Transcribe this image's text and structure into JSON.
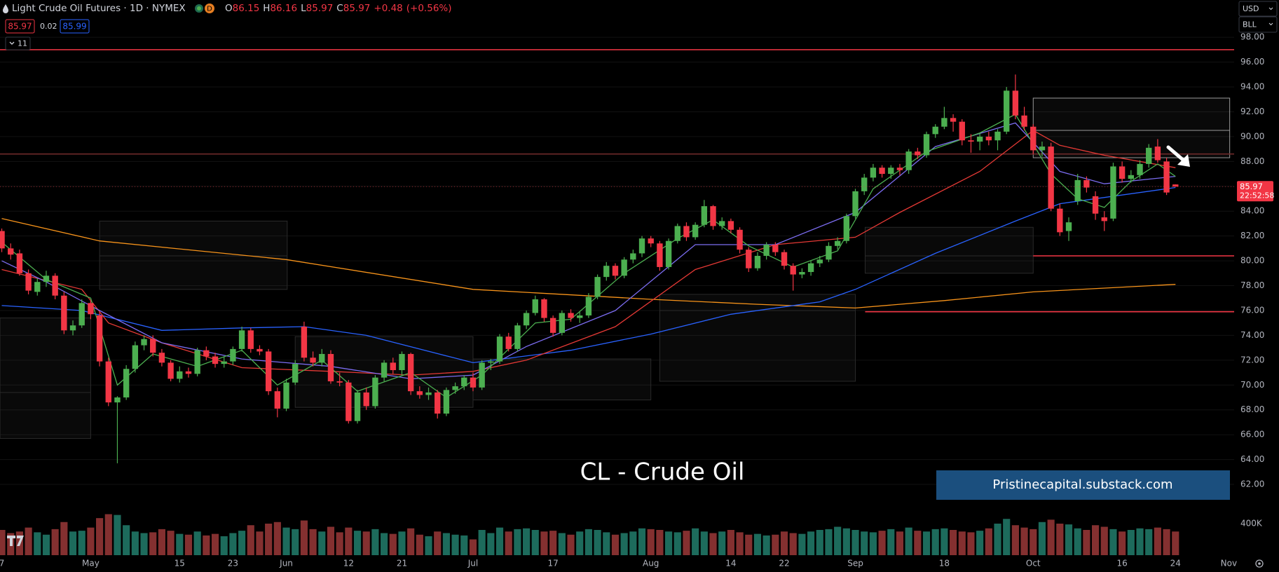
{
  "header": {
    "title": "Light Crude Oil Futures · 1D · NYMEX",
    "interval_badge": "D",
    "o_label": "O",
    "open": 86.15,
    "h_label": "H",
    "high": 86.16,
    "l_label": "L",
    "low": 85.97,
    "c_label": "C",
    "close": 85.97,
    "change": "+0.48",
    "change_pct": "(+0.56%)",
    "bid": 85.97,
    "spread": 0.02,
    "ask": 85.99,
    "indicators_count": 11,
    "currency": "USD",
    "unit": "BLL"
  },
  "chart_data": {
    "type": "candlestick",
    "up_color": "#4caf50",
    "down_color": "#f23645",
    "volume_up_color": "#1d6b5c",
    "volume_down_color": "#843030",
    "annotation": "CL - Crude Oil",
    "banner": "Pristinecapital.substack.com",
    "last_price": 85.97,
    "countdown": "22:52:58",
    "xlim": [
      -0.2,
      138.6
    ],
    "ylim": [
      56.3,
      101.0
    ],
    "vlim": [
      0,
      7040000
    ],
    "yticks": [
      {
        "value": 62,
        "label": "62.00"
      },
      {
        "value": 64,
        "label": "64.00"
      },
      {
        "value": 66,
        "label": "66.00"
      },
      {
        "value": 68,
        "label": "68.00"
      },
      {
        "value": 70,
        "label": "70.00"
      },
      {
        "value": 72,
        "label": "72.00"
      },
      {
        "value": 74,
        "label": "74.00"
      },
      {
        "value": 76,
        "label": "76.00"
      },
      {
        "value": 78,
        "label": "78.00"
      },
      {
        "value": 80,
        "label": "80.00"
      },
      {
        "value": 82,
        "label": "82.00"
      },
      {
        "value": 84,
        "label": "84.00"
      },
      {
        "value": 86,
        "label": "86.00"
      },
      {
        "value": 88,
        "label": "88.00"
      },
      {
        "value": 90,
        "label": "90.00"
      },
      {
        "value": 92,
        "label": "92.00"
      },
      {
        "value": 94,
        "label": "94.00"
      },
      {
        "value": 96,
        "label": "96.00"
      },
      {
        "value": 98,
        "label": "98.00"
      }
    ],
    "vticks": [
      {
        "value": 400000,
        "label": "400K"
      }
    ],
    "xticks": [
      {
        "value": 0,
        "label": "7"
      },
      {
        "value": 10,
        "label": "May"
      },
      {
        "value": 20,
        "label": "15"
      },
      {
        "value": 26,
        "label": "23"
      },
      {
        "value": 32,
        "label": "Jun"
      },
      {
        "value": 39,
        "label": "12"
      },
      {
        "value": 45,
        "label": "21"
      },
      {
        "value": 53,
        "label": "Jul"
      },
      {
        "value": 62,
        "label": "17"
      },
      {
        "value": 73,
        "label": "Aug"
      },
      {
        "value": 82,
        "label": "14"
      },
      {
        "value": 88,
        "label": "22"
      },
      {
        "value": 96,
        "label": "Sep"
      },
      {
        "value": 106,
        "label": "18"
      },
      {
        "value": 116,
        "label": "Oct"
      },
      {
        "value": 126,
        "label": "16"
      },
      {
        "value": 132,
        "label": "24"
      },
      {
        "value": 138,
        "label": "Nov"
      }
    ],
    "levels": [
      {
        "value": 97.0,
        "color": "#f23645"
      },
      {
        "value": 88.6,
        "color": "#6e2a2a"
      },
      {
        "value": 80.4,
        "color": "#f23645",
        "from": 116
      },
      {
        "value": 75.9,
        "color": "#f23645",
        "from": 97.1
      }
    ],
    "zones": [
      {
        "x": [
          -0.2,
          10.0
        ],
        "y": [
          65.7,
          75.4
        ],
        "mid": 69.4,
        "color": "#2a2a2a"
      },
      {
        "x": [
          11.0,
          32.1
        ],
        "y": [
          77.7,
          83.2
        ],
        "mid": 80.4,
        "color": "#2a2a2a"
      },
      {
        "x": [
          33.0,
          53.0
        ],
        "y": [
          68.2,
          73.9
        ],
        "color": "#2a2a2a"
      },
      {
        "x": [
          53.0,
          73.0
        ],
        "y": [
          68.8,
          72.1
        ],
        "color": "#2a2a2a"
      },
      {
        "x": [
          74.0,
          96.0
        ],
        "y": [
          70.3,
          77.3
        ],
        "mid": 76.0,
        "color": "#2a2a2a"
      },
      {
        "x": [
          97.1,
          116.0
        ],
        "y": [
          79.0,
          82.7
        ],
        "mid": 80.4,
        "color": "#2a2a2a"
      },
      {
        "x": [
          116.0,
          138.1
        ],
        "y": [
          88.3,
          93.1
        ],
        "mid": 90.5,
        "color": "#9a9a9a"
      }
    ],
    "lines": [
      {
        "color": "#f7931a",
        "x": [
          0,
          11,
          32,
          53,
          73,
          85,
          96,
          106,
          116,
          132
        ],
        "values": [
          83.4,
          81.6,
          80.1,
          77.7,
          76.9,
          76.5,
          76.2,
          76.8,
          77.5,
          78.1
        ]
      },
      {
        "color": "#2962ff",
        "x": [
          0,
          9,
          18,
          27,
          34,
          41,
          53,
          64,
          73,
          82,
          92,
          96,
          105,
          114,
          119,
          132
        ],
        "values": [
          76.4,
          76.0,
          74.4,
          74.6,
          74.7,
          74.0,
          71.8,
          72.8,
          74.1,
          75.7,
          76.7,
          77.7,
          80.6,
          83.2,
          84.6,
          85.9
        ]
      },
      {
        "color": "#e53935",
        "x": [
          0,
          9,
          12,
          18,
          27,
          37,
          46,
          53,
          59,
          69,
          78,
          87,
          96,
          101,
          110,
          116,
          119,
          124,
          132
        ],
        "values": [
          79.3,
          77.7,
          75.0,
          73.4,
          71.4,
          71.1,
          70.8,
          71.1,
          72.0,
          74.7,
          79.3,
          81.3,
          81.9,
          83.9,
          87.2,
          90.5,
          89.3,
          88.5,
          87.5
        ]
      },
      {
        "color": "#7b6cf0",
        "x": [
          0,
          5,
          11,
          18,
          27,
          37,
          46,
          53,
          59,
          69,
          78,
          87,
          96,
          105,
          114,
          119,
          124,
          132
        ],
        "values": [
          80.0,
          78.3,
          76.0,
          73.4,
          72.1,
          71.5,
          70.5,
          70.8,
          73.1,
          76.0,
          81.3,
          81.3,
          83.9,
          89.2,
          91.1,
          87.2,
          86.2,
          86.8
        ]
      },
      {
        "color": "#4caf50",
        "x": [
          0,
          5,
          10,
          13,
          17,
          22,
          27,
          31,
          36,
          40,
          46,
          50,
          54,
          60,
          64,
          70,
          76,
          80,
          84,
          89,
          94,
          98,
          104,
          110,
          114,
          118,
          121,
          124,
          127,
          130,
          132
        ],
        "values": [
          81.5,
          78.5,
          77.0,
          70.0,
          72.5,
          71.5,
          72.8,
          70.0,
          72.0,
          69.5,
          71.0,
          69.0,
          70.8,
          75.0,
          75.3,
          79.0,
          81.8,
          83.3,
          81.2,
          79.5,
          80.8,
          85.8,
          88.8,
          90.3,
          91.8,
          87.0,
          85.0,
          84.3,
          86.4,
          87.8,
          86.8
        ]
      }
    ],
    "candles": [
      [
        82.4,
        82.6,
        80.7,
        81.0
      ],
      [
        81.0,
        81.4,
        80.1,
        80.5
      ],
      [
        80.6,
        80.9,
        78.8,
        79.0
      ],
      [
        79.0,
        79.3,
        77.3,
        77.6
      ],
      [
        77.5,
        78.6,
        77.2,
        78.3
      ],
      [
        78.3,
        79.2,
        77.9,
        78.8
      ],
      [
        78.8,
        79.0,
        76.9,
        77.2
      ],
      [
        77.2,
        77.5,
        74.1,
        74.4
      ],
      [
        74.4,
        75.2,
        74.0,
        74.8
      ],
      [
        74.8,
        76.9,
        74.6,
        76.6
      ],
      [
        76.6,
        76.8,
        75.3,
        75.7
      ],
      [
        75.6,
        75.9,
        71.5,
        71.9
      ],
      [
        71.9,
        72.2,
        68.3,
        68.6
      ],
      [
        68.6,
        69.1,
        63.7,
        69.0
      ],
      [
        69.0,
        71.6,
        68.8,
        71.3
      ],
      [
        71.3,
        73.5,
        71.0,
        73.2
      ],
      [
        73.2,
        74.0,
        72.8,
        73.7
      ],
      [
        73.7,
        74.0,
        72.3,
        72.6
      ],
      [
        72.6,
        72.9,
        71.5,
        71.8
      ],
      [
        71.8,
        72.0,
        70.3,
        70.5
      ],
      [
        70.5,
        71.5,
        70.2,
        71.1
      ],
      [
        71.1,
        71.4,
        70.6,
        70.9
      ],
      [
        70.9,
        73.0,
        70.7,
        72.8
      ],
      [
        72.8,
        73.1,
        72.0,
        72.3
      ],
      [
        72.3,
        72.6,
        71.4,
        71.7
      ],
      [
        71.7,
        72.3,
        71.4,
        71.9
      ],
      [
        71.9,
        73.1,
        71.6,
        72.9
      ],
      [
        72.9,
        74.7,
        72.7,
        74.4
      ],
      [
        74.4,
        74.6,
        72.6,
        72.9
      ],
      [
        72.9,
        73.2,
        72.4,
        72.7
      ],
      [
        72.7,
        72.9,
        69.2,
        69.5
      ],
      [
        69.5,
        69.8,
        67.4,
        68.1
      ],
      [
        68.1,
        70.5,
        67.9,
        70.2
      ],
      [
        70.2,
        72.0,
        70.0,
        71.7
      ],
      [
        74.7,
        75.1,
        71.9,
        72.2
      ],
      [
        72.2,
        72.7,
        71.5,
        71.8
      ],
      [
        71.8,
        72.9,
        71.5,
        72.5
      ],
      [
        72.5,
        72.8,
        70.1,
        70.3
      ],
      [
        70.3,
        71.0,
        69.9,
        70.2
      ],
      [
        70.2,
        70.4,
        66.9,
        67.1
      ],
      [
        67.1,
        69.6,
        66.9,
        69.4
      ],
      [
        69.4,
        69.8,
        68.0,
        68.3
      ],
      [
        68.3,
        70.8,
        68.1,
        70.6
      ],
      [
        70.6,
        72.0,
        70.3,
        71.8
      ],
      [
        71.8,
        72.2,
        70.9,
        71.2
      ],
      [
        71.2,
        72.7,
        70.8,
        72.5
      ],
      [
        72.5,
        72.6,
        69.2,
        69.5
      ],
      [
        69.5,
        69.9,
        68.9,
        69.2
      ],
      [
        69.2,
        69.8,
        68.8,
        69.4
      ],
      [
        69.4,
        69.6,
        67.3,
        67.7
      ],
      [
        67.7,
        69.8,
        67.5,
        69.6
      ],
      [
        69.6,
        70.2,
        69.3,
        69.9
      ],
      [
        69.9,
        70.8,
        69.6,
        70.6
      ],
      [
        70.6,
        71.0,
        69.5,
        69.8
      ],
      [
        69.8,
        72.0,
        69.6,
        71.8
      ],
      [
        71.8,
        72.1,
        71.2,
        71.9
      ],
      [
        71.9,
        74.1,
        71.7,
        73.9
      ],
      [
        73.9,
        74.2,
        72.7,
        72.9
      ],
      [
        72.9,
        75.0,
        72.7,
        74.8
      ],
      [
        74.8,
        76.0,
        74.5,
        75.8
      ],
      [
        75.8,
        77.2,
        75.6,
        76.9
      ],
      [
        76.9,
        77.0,
        75.1,
        75.4
      ],
      [
        75.4,
        75.6,
        73.9,
        74.2
      ],
      [
        74.2,
        76.0,
        74.0,
        75.8
      ],
      [
        75.8,
        76.1,
        75.1,
        75.4
      ],
      [
        75.4,
        75.9,
        75.0,
        75.6
      ],
      [
        75.6,
        77.4,
        75.4,
        77.1
      ],
      [
        77.1,
        78.9,
        76.9,
        78.7
      ],
      [
        78.7,
        79.9,
        78.4,
        79.6
      ],
      [
        79.6,
        79.8,
        78.5,
        78.8
      ],
      [
        78.8,
        80.3,
        78.6,
        80.1
      ],
      [
        80.1,
        80.9,
        79.8,
        80.6
      ],
      [
        80.6,
        82.0,
        80.3,
        81.8
      ],
      [
        81.8,
        82.0,
        81.1,
        81.4
      ],
      [
        81.4,
        81.6,
        79.2,
        79.5
      ],
      [
        79.5,
        81.8,
        79.3,
        81.6
      ],
      [
        81.6,
        83.0,
        81.4,
        82.8
      ],
      [
        82.8,
        83.1,
        81.6,
        81.9
      ],
      [
        81.9,
        83.1,
        81.7,
        82.9
      ],
      [
        82.9,
        84.9,
        82.7,
        84.4
      ],
      [
        84.4,
        84.5,
        82.5,
        82.8
      ],
      [
        82.8,
        83.5,
        82.5,
        83.2
      ],
      [
        83.2,
        83.4,
        82.2,
        82.5
      ],
      [
        82.5,
        82.7,
        80.6,
        80.9
      ],
      [
        80.9,
        81.1,
        79.1,
        79.4
      ],
      [
        79.4,
        80.7,
        79.2,
        80.4
      ],
      [
        80.4,
        81.5,
        80.1,
        81.3
      ],
      [
        81.3,
        81.5,
        80.4,
        80.7
      ],
      [
        80.7,
        80.9,
        79.3,
        79.6
      ],
      [
        79.6,
        79.8,
        77.6,
        78.9
      ],
      [
        78.9,
        79.4,
        78.6,
        79.1
      ],
      [
        79.1,
        80.0,
        78.8,
        79.8
      ],
      [
        79.8,
        80.4,
        79.5,
        80.1
      ],
      [
        80.1,
        81.5,
        79.9,
        81.2
      ],
      [
        81.2,
        81.9,
        80.9,
        81.6
      ],
      [
        81.6,
        83.8,
        81.4,
        83.6
      ],
      [
        83.6,
        85.8,
        83.4,
        85.6
      ],
      [
        85.6,
        87.0,
        85.3,
        86.7
      ],
      [
        86.7,
        87.8,
        86.4,
        87.5
      ],
      [
        87.5,
        87.7,
        86.7,
        87.0
      ],
      [
        87.0,
        87.7,
        86.6,
        87.5
      ],
      [
        87.5,
        87.8,
        86.9,
        87.3
      ],
      [
        87.3,
        89.0,
        87.0,
        88.8
      ],
      [
        88.8,
        89.1,
        88.2,
        88.5
      ],
      [
        88.5,
        90.4,
        88.3,
        90.2
      ],
      [
        90.2,
        91.0,
        89.9,
        90.8
      ],
      [
        90.8,
        92.4,
        90.6,
        91.5
      ],
      [
        91.5,
        91.8,
        90.4,
        91.2
      ],
      [
        91.2,
        91.4,
        89.3,
        89.7
      ],
      [
        89.7,
        90.2,
        88.7,
        89.6
      ],
      [
        89.6,
        90.3,
        88.9,
        90.0
      ],
      [
        90.0,
        90.4,
        89.3,
        89.7
      ],
      [
        89.7,
        90.6,
        88.9,
        90.4
      ],
      [
        90.4,
        94.0,
        90.2,
        93.7
      ],
      [
        93.7,
        95.0,
        91.4,
        91.7
      ],
      [
        91.7,
        92.4,
        90.5,
        90.8
      ],
      [
        90.8,
        91.0,
        88.6,
        88.9
      ],
      [
        88.9,
        89.6,
        88.4,
        89.2
      ],
      [
        89.2,
        89.5,
        84.0,
        84.2
      ],
      [
        84.2,
        84.6,
        82.0,
        82.3
      ],
      [
        82.4,
        83.5,
        81.6,
        83.1
      ],
      [
        84.8,
        87.0,
        84.5,
        86.5
      ],
      [
        86.5,
        86.8,
        85.5,
        85.9
      ],
      [
        85.2,
        85.6,
        83.3,
        83.8
      ],
      [
        83.5,
        84.0,
        82.4,
        83.2
      ],
      [
        83.4,
        87.9,
        83.2,
        87.6
      ],
      [
        87.6,
        88.0,
        86.3,
        86.6
      ],
      [
        86.6,
        87.3,
        86.3,
        86.9
      ],
      [
        86.9,
        88.1,
        86.6,
        87.8
      ],
      [
        87.8,
        89.4,
        87.5,
        89.1
      ],
      [
        89.2,
        89.8,
        87.9,
        88.1
      ],
      [
        88.0,
        88.3,
        85.3,
        85.5
      ],
      [
        86.15,
        86.16,
        85.97,
        85.97
      ]
    ],
    "volume": [
      320000,
      280000,
      300000,
      350000,
      290000,
      260000,
      330000,
      420000,
      300000,
      310000,
      350000,
      470000,
      520000,
      510000,
      380000,
      300000,
      280000,
      290000,
      330000,
      310000,
      270000,
      260000,
      300000,
      250000,
      270000,
      240000,
      280000,
      310000,
      380000,
      300000,
      400000,
      420000,
      350000,
      330000,
      440000,
      330000,
      300000,
      360000,
      290000,
      350000,
      310000,
      300000,
      330000,
      280000,
      270000,
      300000,
      340000,
      260000,
      240000,
      300000,
      280000,
      260000,
      250000,
      200000,
      320000,
      280000,
      350000,
      300000,
      330000,
      340000,
      320000,
      300000,
      310000,
      280000,
      260000,
      300000,
      330000,
      320000,
      290000,
      260000,
      280000,
      300000,
      340000,
      330000,
      320000,
      300000,
      290000,
      310000,
      340000,
      300000,
      280000,
      300000,
      320000,
      290000,
      260000,
      270000,
      250000,
      260000,
      300000,
      280000,
      270000,
      300000,
      320000,
      330000,
      360000,
      340000,
      320000,
      300000,
      290000,
      310000,
      330000,
      300000,
      350000,
      310000,
      300000,
      330000,
      340000,
      320000,
      300000,
      290000,
      310000,
      340000,
      400000,
      460000,
      380000,
      350000,
      330000,
      420000,
      450000,
      400000,
      390000,
      340000,
      320000,
      380000,
      360000,
      330000,
      300000,
      320000,
      340000,
      330000,
      350000,
      330000,
      300000
    ]
  }
}
